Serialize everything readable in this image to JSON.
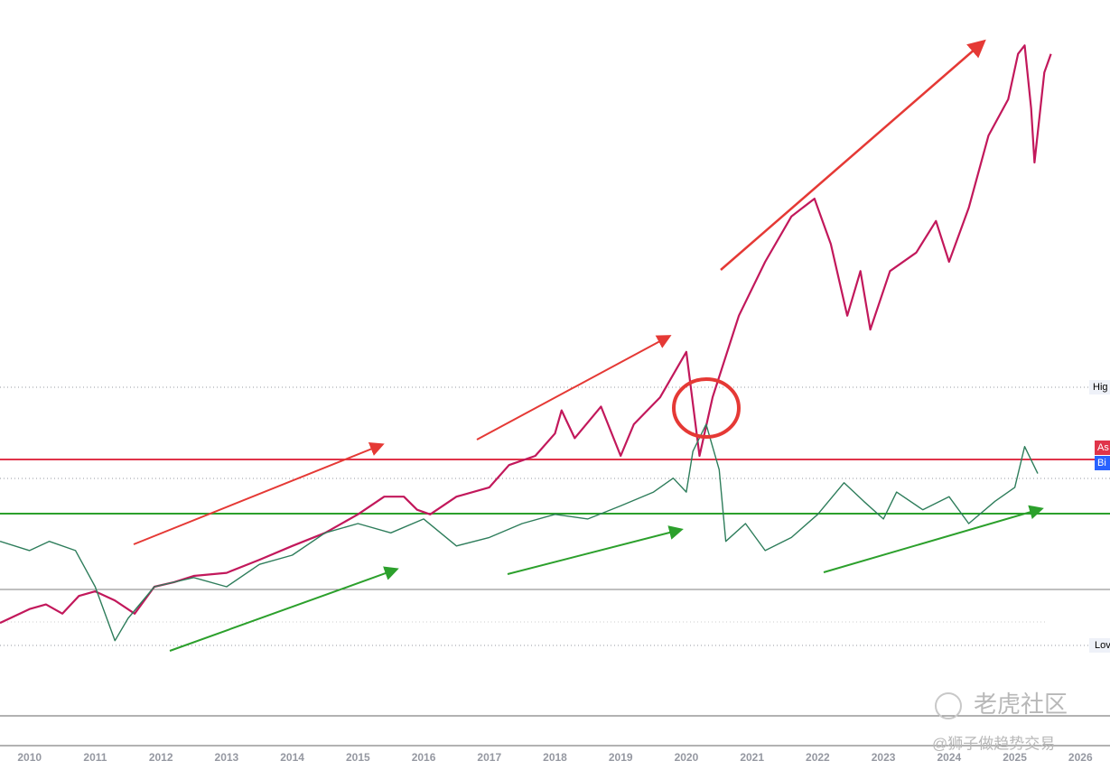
{
  "chart_data": {
    "type": "line",
    "xlim": [
      2009.55,
      2026.45
    ],
    "xticks": [
      2010,
      2011,
      2012,
      2013,
      2014,
      2015,
      2016,
      2017,
      2018,
      2019,
      2020,
      2021,
      2022,
      2023,
      2024,
      2025,
      2026
    ],
    "ylim": [
      0,
      100
    ],
    "grid": false,
    "series": [
      {
        "color": "#c2185b",
        "x": [
          2009.55,
          2010.0,
          2010.25,
          2010.5,
          2010.75,
          2011.0,
          2011.3,
          2011.6,
          2011.9,
          2012.2,
          2012.5,
          2013.0,
          2013.5,
          2014.0,
          2014.5,
          2015.0,
          2015.4,
          2015.7,
          2015.9,
          2016.1,
          2016.5,
          2017.0,
          2017.3,
          2017.7,
          2018.0,
          2018.1,
          2018.3,
          2018.7,
          2019.0,
          2019.2,
          2019.6,
          2020.0,
          2020.2,
          2020.4,
          2020.8,
          2021.2,
          2021.6,
          2021.95,
          2022.2,
          2022.45,
          2022.65,
          2022.8,
          2023.1,
          2023.5,
          2023.8,
          2024.0,
          2024.3,
          2024.6,
          2024.9,
          2025.05,
          2025.15,
          2025.25,
          2025.3,
          2025.45,
          2025.55
        ],
        "values": [
          19.1,
          20.9,
          21.5,
          20.3,
          22.6,
          23.2,
          22.0,
          20.3,
          23.8,
          24.4,
          25.2,
          25.6,
          27.3,
          29.1,
          30.8,
          33.2,
          35.5,
          35.5,
          33.8,
          33.2,
          35.5,
          36.7,
          39.6,
          40.8,
          43.7,
          46.7,
          43.1,
          47.2,
          40.8,
          44.9,
          48.4,
          54.3,
          40.8,
          48.4,
          59.0,
          66.0,
          71.9,
          74.2,
          68.3,
          59.0,
          64.8,
          57.2,
          64.8,
          67.2,
          71.3,
          66.0,
          73.0,
          82.4,
          87.1,
          93.0,
          94.1,
          85.9,
          78.9,
          90.6,
          93.0
        ]
      },
      {
        "color": "#2e7d5b",
        "x": [
          2009.55,
          2010.0,
          2010.3,
          2010.7,
          2011.0,
          2011.3,
          2011.5,
          2011.9,
          2012.5,
          2013.0,
          2013.5,
          2014.0,
          2014.5,
          2015.0,
          2015.5,
          2016.0,
          2016.5,
          2017.0,
          2017.5,
          2018.0,
          2018.5,
          2019.0,
          2019.5,
          2019.8,
          2020.0,
          2020.1,
          2020.3,
          2020.5,
          2020.6,
          2020.9,
          2021.2,
          2021.6,
          2022.0,
          2022.4,
          2022.7,
          2023.0,
          2023.2,
          2023.6,
          2024.0,
          2024.3,
          2024.7,
          2025.0,
          2025.15,
          2025.35
        ],
        "values": [
          29.7,
          28.5,
          29.7,
          28.5,
          23.8,
          16.8,
          19.7,
          23.8,
          25.0,
          23.8,
          26.7,
          27.9,
          30.8,
          32.0,
          30.8,
          32.6,
          29.1,
          30.2,
          32.0,
          33.2,
          32.6,
          34.3,
          36.1,
          37.9,
          36.1,
          41.4,
          44.9,
          39.0,
          29.7,
          32.0,
          28.5,
          30.2,
          33.2,
          37.3,
          34.9,
          32.6,
          36.1,
          33.8,
          35.5,
          32.0,
          34.9,
          36.7,
          42.0,
          38.5
        ]
      }
    ],
    "annotations": [
      "Hig",
      "Lov",
      "As",
      "Bi"
    ]
  },
  "watermark": {
    "brand": "老虎社区",
    "author": "@狮子做趋势交易"
  }
}
